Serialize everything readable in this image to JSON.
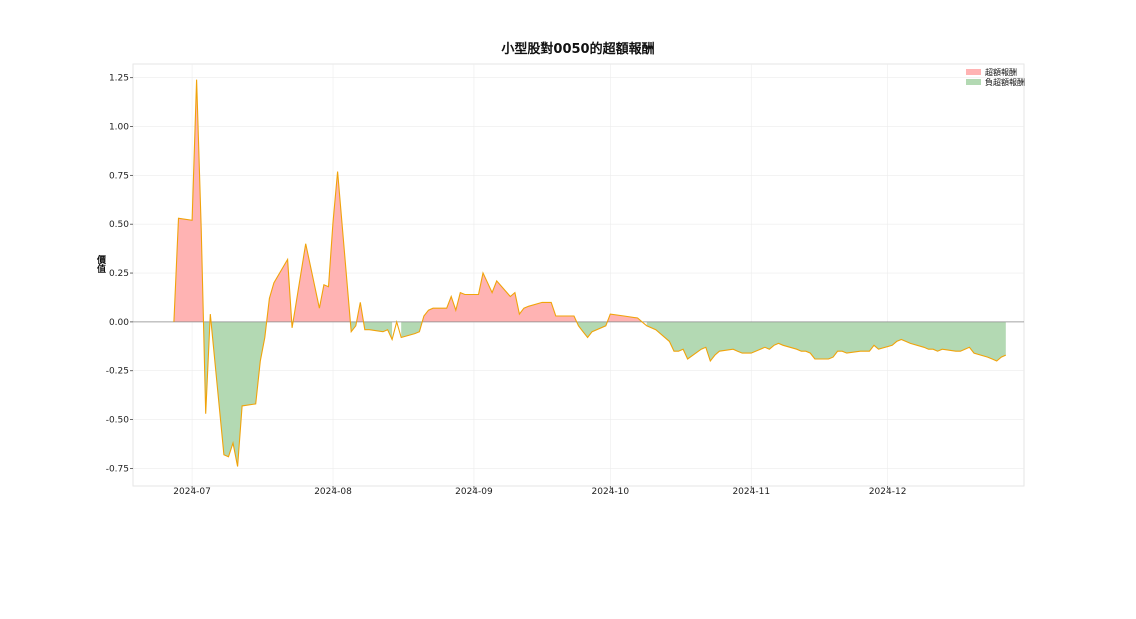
{
  "chart_data": {
    "type": "area",
    "title": "小型股對0050的超額報酬",
    "xlabel": "",
    "ylabel": "價值",
    "x_ticks": [
      "2024-07",
      "2024-08",
      "2024-09",
      "2024-10",
      "2024-11",
      "2024-12"
    ],
    "xlim": [
      "2024-06-18",
      "2024-12-31"
    ],
    "ylim": [
      -0.84,
      1.32
    ],
    "y_ticks": [
      -0.75,
      -0.5,
      -0.25,
      0.0,
      0.25,
      0.5,
      0.75,
      1.0,
      1.25
    ],
    "y_tick_labels": [
      "-0.75",
      "-0.50",
      "-0.25",
      "0.00",
      "0.25",
      "0.50",
      "0.75",
      "1.00",
      "1.25"
    ],
    "grid": true,
    "legend": {
      "position": "top-right",
      "entries": [
        {
          "label": "超額報酬",
          "color": "#ffb3b3"
        },
        {
          "label": "負超額報酬",
          "color": "#b3d9b3"
        }
      ]
    },
    "colors": {
      "line": "#f0a30a",
      "positive": "#ffb3b3",
      "negative": "#b3d9b3",
      "zero_line": "#888888"
    },
    "series": [
      {
        "x": [
          "2024-06-27",
          "2024-06-28",
          "2024-07-01",
          "2024-07-02",
          "2024-07-03",
          "2024-07-04",
          "2024-07-05",
          "2024-07-08",
          "2024-07-09",
          "2024-07-10",
          "2024-07-11",
          "2024-07-12",
          "2024-07-15",
          "2024-07-16",
          "2024-07-17",
          "2024-07-18",
          "2024-07-19",
          "2024-07-22",
          "2024-07-23",
          "2024-07-26",
          "2024-07-29",
          "2024-07-30",
          "2024-07-31",
          "2024-08-01",
          "2024-08-02",
          "2024-08-05",
          "2024-08-06",
          "2024-08-07",
          "2024-08-08",
          "2024-08-09",
          "2024-08-12",
          "2024-08-13",
          "2024-08-14",
          "2024-08-15",
          "2024-08-16",
          "2024-08-19",
          "2024-08-20",
          "2024-08-21",
          "2024-08-22",
          "2024-08-23",
          "2024-08-26",
          "2024-08-27",
          "2024-08-28",
          "2024-08-29",
          "2024-08-30",
          "2024-09-02",
          "2024-09-03",
          "2024-09-04",
          "2024-09-05",
          "2024-09-06",
          "2024-09-09",
          "2024-09-10",
          "2024-09-11",
          "2024-09-12",
          "2024-09-13",
          "2024-09-16",
          "2024-09-18",
          "2024-09-19",
          "2024-09-20",
          "2024-09-23",
          "2024-09-24",
          "2024-09-25",
          "2024-09-26",
          "2024-09-27",
          "2024-09-30",
          "2024-10-01",
          "2024-10-04",
          "2024-10-07",
          "2024-10-08",
          "2024-10-09",
          "2024-10-11",
          "2024-10-14",
          "2024-10-15",
          "2024-10-16",
          "2024-10-17",
          "2024-10-18",
          "2024-10-21",
          "2024-10-22",
          "2024-10-23",
          "2024-10-24",
          "2024-10-25",
          "2024-10-28",
          "2024-10-29",
          "2024-10-30",
          "2024-11-01",
          "2024-11-04",
          "2024-11-05",
          "2024-11-06",
          "2024-11-07",
          "2024-11-08",
          "2024-11-11",
          "2024-11-12",
          "2024-11-13",
          "2024-11-14",
          "2024-11-15",
          "2024-11-18",
          "2024-11-19",
          "2024-11-20",
          "2024-11-21",
          "2024-11-22",
          "2024-11-25",
          "2024-11-26",
          "2024-11-27",
          "2024-11-28",
          "2024-11-29",
          "2024-12-02",
          "2024-12-03",
          "2024-12-04",
          "2024-12-05",
          "2024-12-06",
          "2024-12-09",
          "2024-12-10",
          "2024-12-11",
          "2024-12-12",
          "2024-12-13",
          "2024-12-16",
          "2024-12-17",
          "2024-12-18",
          "2024-12-19",
          "2024-12-20",
          "2024-12-23",
          "2024-12-24",
          "2024-12-25",
          "2024-12-26",
          "2024-12-27"
        ],
        "values": [
          0.0,
          0.53,
          0.52,
          1.24,
          0.48,
          -0.47,
          0.04,
          -0.68,
          -0.69,
          -0.62,
          -0.74,
          -0.43,
          -0.42,
          -0.2,
          -0.08,
          0.12,
          0.2,
          0.32,
          -0.03,
          0.4,
          0.07,
          0.19,
          0.18,
          0.51,
          0.77,
          -0.05,
          -0.02,
          0.1,
          -0.04,
          -0.04,
          -0.05,
          -0.04,
          -0.09,
          0.0,
          -0.08,
          -0.06,
          -0.05,
          0.03,
          0.06,
          0.07,
          0.07,
          0.13,
          0.06,
          0.15,
          0.14,
          0.14,
          0.25,
          0.2,
          0.15,
          0.21,
          0.13,
          0.15,
          0.04,
          0.07,
          0.08,
          0.1,
          0.1,
          0.03,
          0.03,
          0.03,
          -0.02,
          -0.05,
          -0.08,
          -0.05,
          -0.02,
          0.04,
          0.03,
          0.02,
          0.0,
          -0.02,
          -0.04,
          -0.1,
          -0.15,
          -0.15,
          -0.14,
          -0.19,
          -0.14,
          -0.13,
          -0.2,
          -0.17,
          -0.15,
          -0.14,
          -0.15,
          -0.16,
          -0.16,
          -0.13,
          -0.14,
          -0.12,
          -0.11,
          -0.12,
          -0.14,
          -0.15,
          -0.15,
          -0.16,
          -0.19,
          -0.19,
          -0.18,
          -0.15,
          -0.15,
          -0.16,
          -0.15,
          -0.15,
          -0.15,
          -0.12,
          -0.14,
          -0.12,
          -0.1,
          -0.09,
          -0.1,
          -0.11,
          -0.13,
          -0.14,
          -0.14,
          -0.15,
          -0.14,
          -0.15,
          -0.15,
          -0.14,
          -0.13,
          -0.16,
          -0.18,
          -0.19,
          -0.2,
          -0.18,
          -0.17
        ]
      }
    ]
  }
}
